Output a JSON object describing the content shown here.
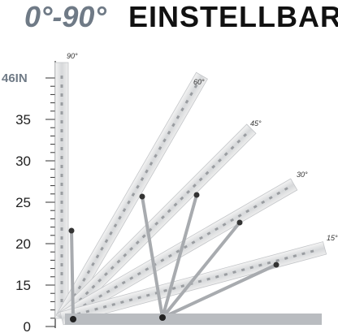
{
  "header": {
    "angle_range": "0°-90°",
    "title": "EINSTELLBAR"
  },
  "ruler": {
    "max_label": "46IN",
    "labels": [
      "35",
      "30",
      "25",
      "20",
      "15",
      "0"
    ]
  },
  "angles": [
    "90°",
    "60°",
    "45°",
    "30°",
    "15°"
  ]
}
